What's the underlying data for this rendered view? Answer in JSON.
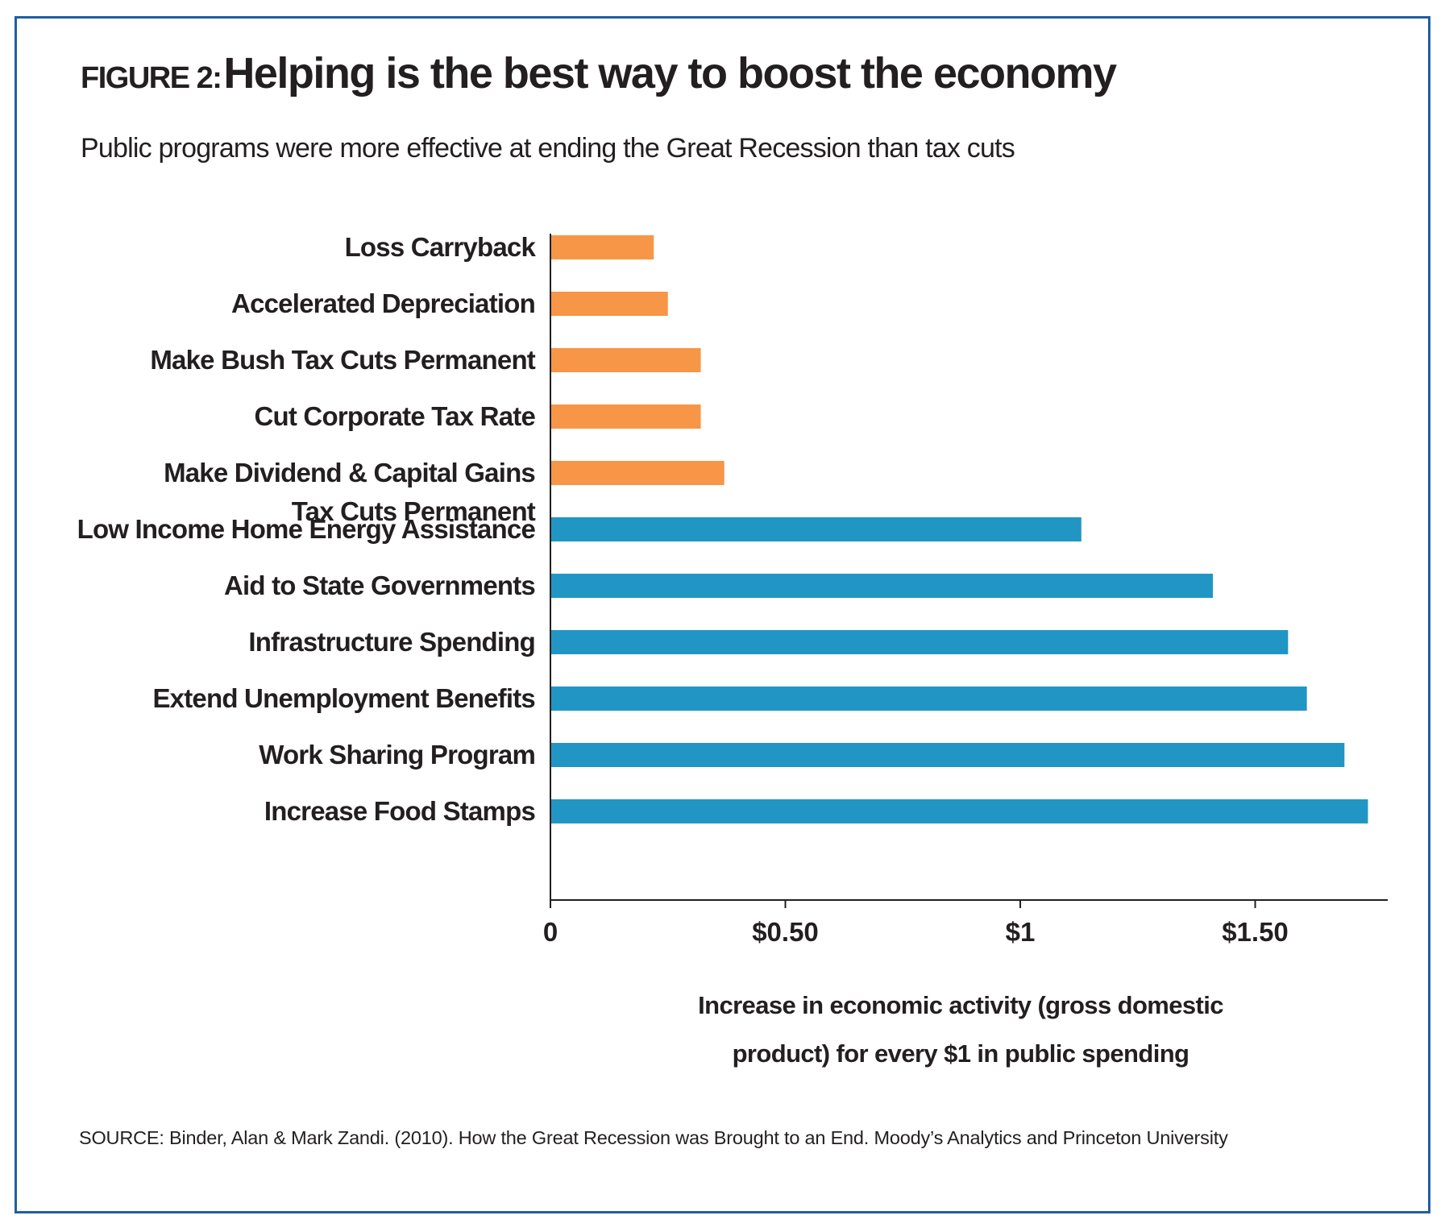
{
  "figure_label": "FIGURE 2:",
  "title": "Helping is the best way to boost the economy",
  "subtitle": "Public programs were more effective at ending the Great Recession than tax cuts",
  "source": "SOURCE: Binder, Alan & Mark Zandi. (2010). How the Great Recession was Brought to an End. Moody’s Analytics and Princeton University",
  "colors": {
    "frame": "#1f5fa0",
    "tax_cuts": "#f79646",
    "spending": "#2196c4",
    "text": "#231f20"
  },
  "chart_data": {
    "type": "bar",
    "orientation": "horizontal",
    "categories": [
      [
        "Loss Carryback"
      ],
      [
        "Accelerated Depreciation"
      ],
      [
        "Make Bush Tax Cuts Permanent"
      ],
      [
        "Cut Corporate Tax Rate"
      ],
      [
        "Make Dividend & Capital Gains",
        "Tax Cuts Permanent"
      ],
      [
        "Low Income Home Energy Assistance"
      ],
      [
        "Aid to State Governments"
      ],
      [
        "Infrastructure Spending"
      ],
      [
        "Extend Unemployment Benefits"
      ],
      [
        "Work Sharing Program"
      ],
      [
        "Increase Food Stamps"
      ]
    ],
    "values": [
      0.22,
      0.25,
      0.32,
      0.32,
      0.37,
      1.13,
      1.41,
      1.57,
      1.61,
      1.69,
      1.74
    ],
    "bar_colors": [
      "#f79646",
      "#f79646",
      "#f79646",
      "#f79646",
      "#f79646",
      "#2196c4",
      "#2196c4",
      "#2196c4",
      "#2196c4",
      "#2196c4",
      "#2196c4"
    ],
    "xlim": [
      0,
      1.78
    ],
    "x_ticks": [
      0,
      0.5,
      1,
      1.5
    ],
    "x_tick_labels": [
      "0",
      "$0.50",
      "$1",
      "$1.50"
    ],
    "xlabel": [
      "Increase in economic activity (gross domestic",
      "product) for every $1 in public spending"
    ],
    "ylabel": "",
    "legend": "none",
    "grid": false
  }
}
